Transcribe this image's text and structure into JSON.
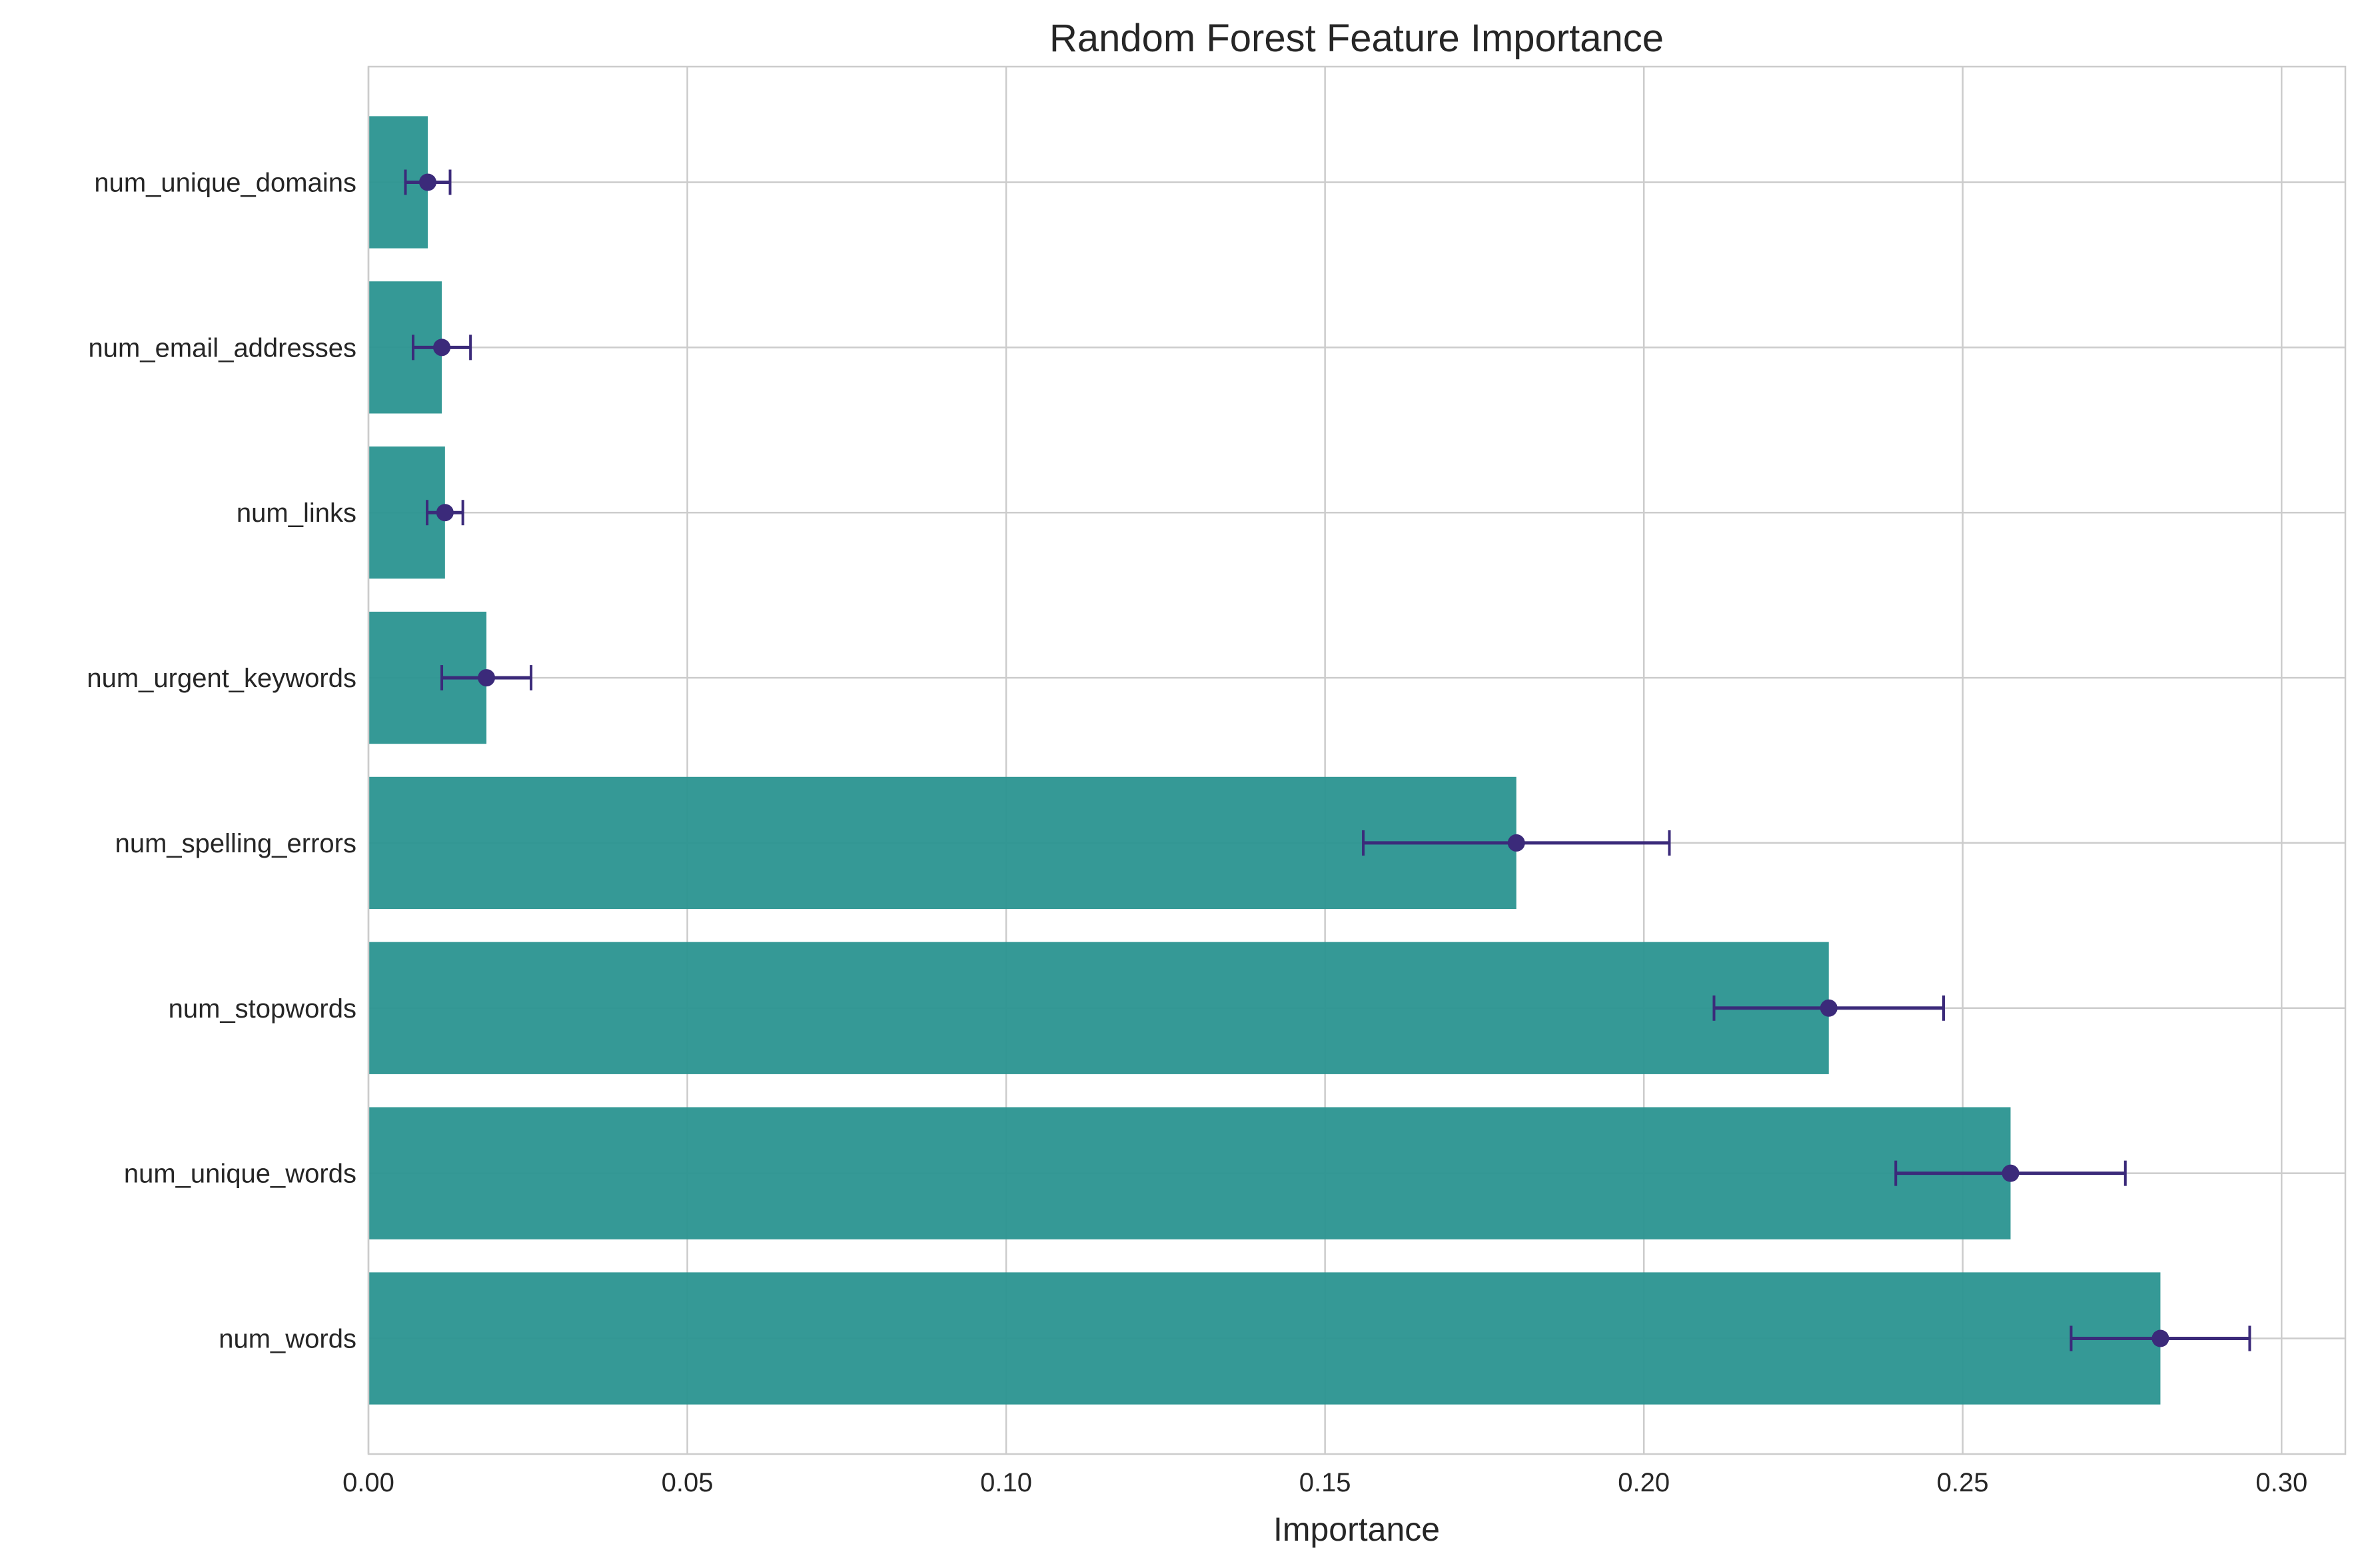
{
  "chart_data": {
    "type": "bar",
    "orientation": "horizontal",
    "title": "Random Forest Feature Importance",
    "xlabel": "Importance",
    "ylabel": "",
    "xlim": [
      0,
      0.31
    ],
    "xticks": [
      0.0,
      0.05,
      0.1,
      0.15,
      0.2,
      0.25,
      0.3
    ],
    "xtick_labels": [
      "0.00",
      "0.05",
      "0.10",
      "0.15",
      "0.20",
      "0.25",
      "0.30"
    ],
    "grid": true,
    "categories": [
      "num_words",
      "num_unique_words",
      "num_stopwords",
      "num_spelling_errors",
      "num_urgent_keywords",
      "num_links",
      "num_email_addresses",
      "num_unique_domains"
    ],
    "values": [
      0.281,
      0.2575,
      0.229,
      0.18,
      0.0185,
      0.012,
      0.0115,
      0.0093
    ],
    "errors": [
      0.014,
      0.018,
      0.018,
      0.024,
      0.007,
      0.0028,
      0.0045,
      0.0035
    ],
    "colors": {
      "bar": "#2a9490",
      "error": "#3b2a7a",
      "grid": "#cccccc",
      "spine": "#cccccc"
    }
  }
}
